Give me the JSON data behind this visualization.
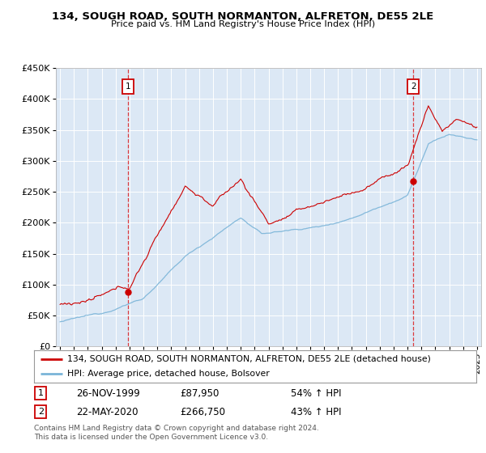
{
  "title": "134, SOUGH ROAD, SOUTH NORMANTON, ALFRETON, DE55 2LE",
  "subtitle": "Price paid vs. HM Land Registry's House Price Index (HPI)",
  "legend_line1": "134, SOUGH ROAD, SOUTH NORMANTON, ALFRETON, DE55 2LE (detached house)",
  "legend_line2": "HPI: Average price, detached house, Bolsover",
  "annotation1_date": "26-NOV-1999",
  "annotation1_price": "£87,950",
  "annotation1_hpi": "54% ↑ HPI",
  "annotation2_date": "22-MAY-2020",
  "annotation2_price": "£266,750",
  "annotation2_hpi": "43% ↑ HPI",
  "footer": "Contains HM Land Registry data © Crown copyright and database right 2024.\nThis data is licensed under the Open Government Licence v3.0.",
  "hpi_color": "#7ab4d8",
  "price_color": "#cc0000",
  "marker_color": "#cc0000",
  "background_color": "#dce8f5",
  "ylim": [
    0,
    450000
  ],
  "yticks": [
    0,
    50000,
    100000,
    150000,
    200000,
    250000,
    300000,
    350000,
    400000,
    450000
  ],
  "year_start": 1995,
  "year_end": 2025,
  "point1_year": 1999.9,
  "point1_price": 87950,
  "point2_year": 2020.42,
  "point2_price": 266750
}
